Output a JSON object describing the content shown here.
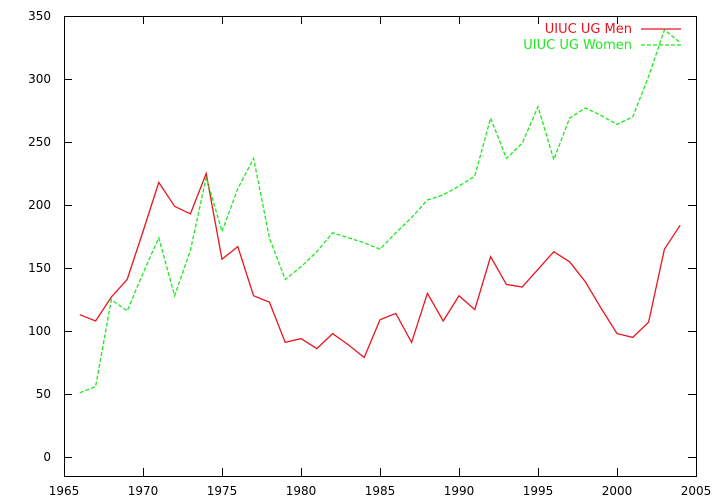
{
  "chart_data": {
    "type": "line",
    "title": "",
    "xlabel": "",
    "ylabel": "",
    "xlim": [
      1965,
      2005
    ],
    "ylim": [
      -15,
      350
    ],
    "xticks": [
      1965,
      1970,
      1975,
      1980,
      1985,
      1990,
      1995,
      2000,
      2005
    ],
    "yticks": [
      0,
      50,
      100,
      150,
      200,
      250,
      300,
      350
    ],
    "grid": false,
    "legend": "top-right",
    "series": [
      {
        "name": "UIUC UG Men",
        "color": "#e8141e",
        "dash": "solid",
        "x": [
          1966,
          1967,
          1968,
          1969,
          1970,
          1971,
          1972,
          1973,
          1974,
          1975,
          1976,
          1977,
          1978,
          1979,
          1980,
          1981,
          1982,
          1983,
          1984,
          1985,
          1986,
          1987,
          1988,
          1989,
          1990,
          1991,
          1992,
          1993,
          1994,
          1995,
          1996,
          1997,
          1998,
          1999,
          2000,
          2001,
          2002,
          2003,
          2004
        ],
        "y": [
          113,
          108,
          127,
          141,
          179,
          218,
          199,
          193,
          225,
          157,
          167,
          128,
          123,
          91,
          94,
          86,
          98,
          89,
          79,
          109,
          114,
          91,
          130,
          108,
          128,
          117,
          159,
          137,
          135,
          149,
          163,
          155,
          139,
          118,
          98,
          95,
          107,
          165,
          184
        ]
      },
      {
        "name": "UIUC UG Women",
        "color": "#1ee81e",
        "dash": "dashed",
        "x": [
          1966,
          1967,
          1968,
          1969,
          1970,
          1971,
          1972,
          1973,
          1974,
          1975,
          1976,
          1977,
          1978,
          1979,
          1980,
          1981,
          1982,
          1983,
          1984,
          1985,
          1986,
          1987,
          1988,
          1989,
          1990,
          1991,
          1992,
          1993,
          1994,
          1995,
          1996,
          1997,
          1998,
          1999,
          2000,
          2001,
          2002,
          2003,
          2004
        ],
        "y": [
          51,
          56,
          125,
          116,
          146,
          174,
          128,
          164,
          222,
          179,
          213,
          237,
          174,
          141,
          151,
          163,
          178,
          174,
          170,
          165,
          178,
          190,
          204,
          208,
          215,
          223,
          269,
          237,
          249,
          278,
          236,
          269,
          277,
          271,
          264,
          270,
          302,
          339,
          329
        ]
      }
    ]
  }
}
